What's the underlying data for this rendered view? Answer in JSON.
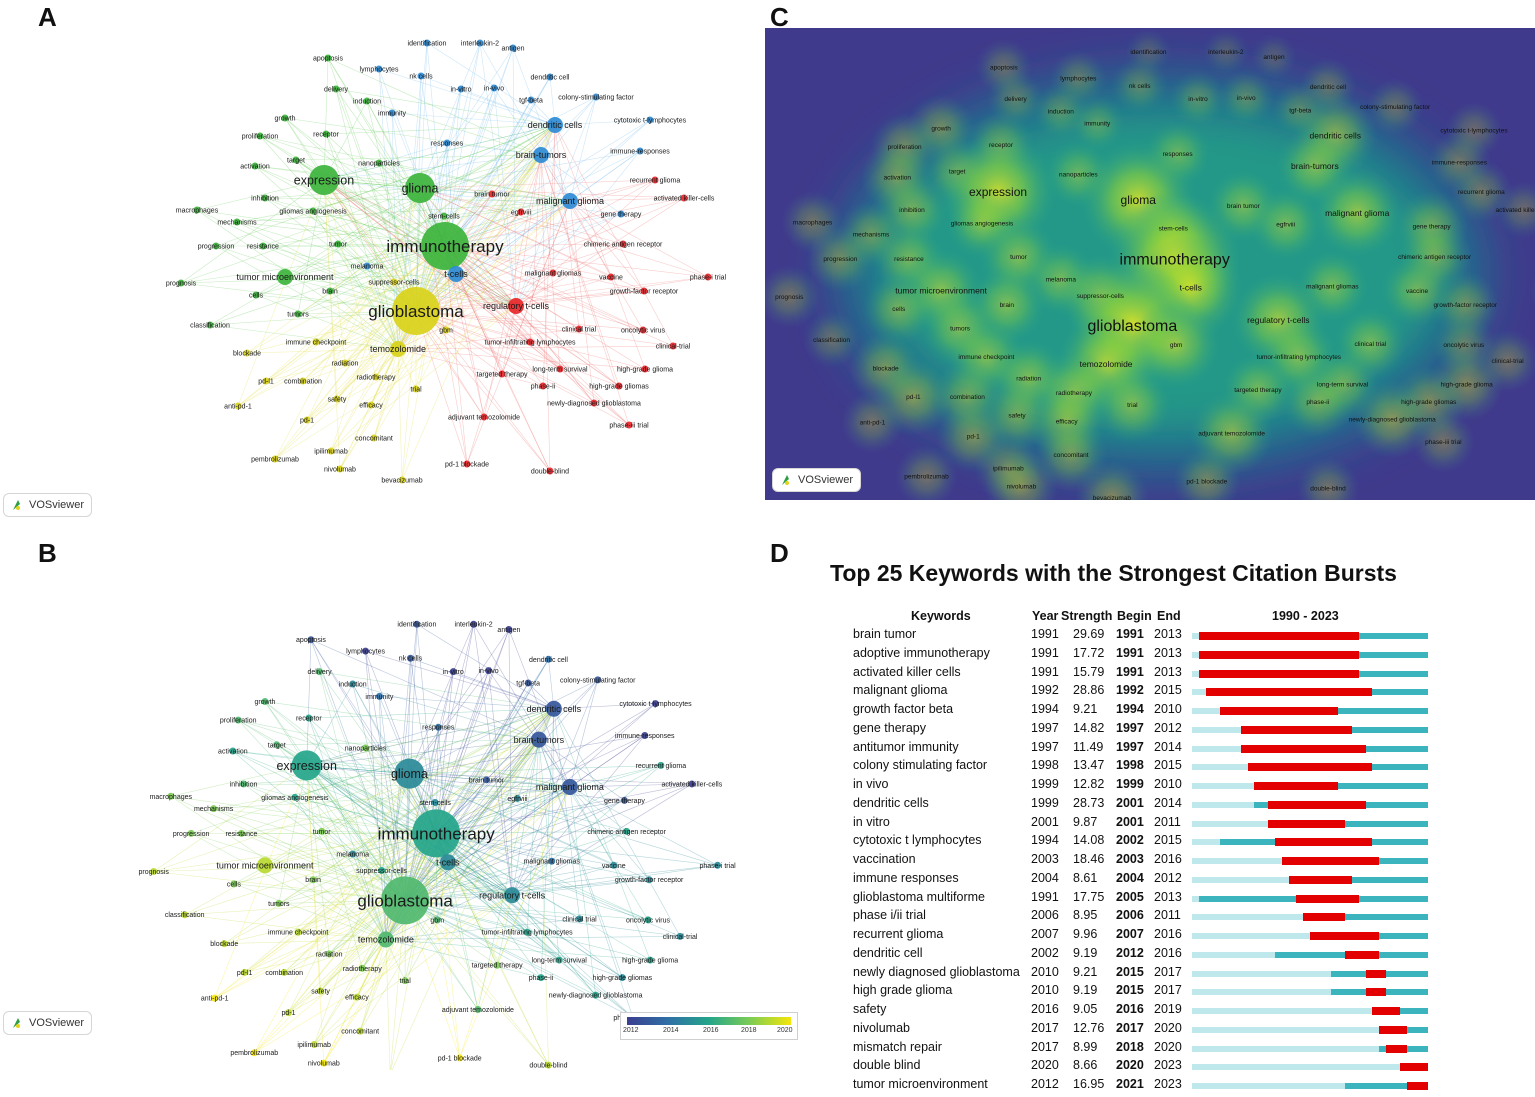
{
  "panels": {
    "a": "A",
    "b": "B",
    "c": "C",
    "d": "D"
  },
  "vosviewer_label": "VOSviewer",
  "colors": {
    "cluster_green": "#3cb43c",
    "cluster_yellow": "#d9d21a",
    "cluster_red": "#e8262a",
    "cluster_blue": "#2e8bd6",
    "burst_red": "#e30000",
    "burst_active": "#3cb4bd",
    "burst_base": "#bfe8ec",
    "density_background": "#403a8c"
  },
  "network_nodes": [
    {
      "label": "identification",
      "cluster": "blue",
      "weight": 1,
      "year": 2013,
      "density": 0.2
    },
    {
      "label": "interleukin-2",
      "cluster": "blue",
      "weight": 1,
      "year": 2012,
      "density": 0.2
    },
    {
      "label": "antigen",
      "cluster": "blue",
      "weight": 1,
      "year": 2012,
      "density": 0.2
    },
    {
      "label": "apoptosis",
      "cluster": "green",
      "weight": 1,
      "year": 2013,
      "density": 0.3
    },
    {
      "label": "lymphocytes",
      "cluster": "blue",
      "weight": 1,
      "year": 2012,
      "density": 0.3
    },
    {
      "label": "nk cells",
      "cluster": "blue",
      "weight": 1,
      "year": 2013,
      "density": 0.3
    },
    {
      "label": "dendritic cell",
      "cluster": "blue",
      "weight": 1,
      "year": 2014,
      "density": 0.3
    },
    {
      "label": "delivery",
      "cluster": "green",
      "weight": 1,
      "year": 2017,
      "density": 0.3
    },
    {
      "label": "in-vitro",
      "cluster": "blue",
      "weight": 1,
      "year": 2012,
      "density": 0.3
    },
    {
      "label": "in-vivo",
      "cluster": "blue",
      "weight": 1,
      "year": 2012,
      "density": 0.3
    },
    {
      "label": "tgf-beta",
      "cluster": "blue",
      "weight": 1,
      "year": 2013,
      "density": 0.3
    },
    {
      "label": "colony-stimulating factor",
      "cluster": "blue",
      "weight": 1,
      "year": 2013,
      "density": 0.3
    },
    {
      "label": "induction",
      "cluster": "green",
      "weight": 1,
      "year": 2015,
      "density": 0.3
    },
    {
      "label": "immunity",
      "cluster": "blue",
      "weight": 1,
      "year": 2014,
      "density": 0.3
    },
    {
      "label": "cytotoxic t-lymphocytes",
      "cluster": "blue",
      "weight": 1,
      "year": 2012,
      "density": 0.3
    },
    {
      "label": "growth",
      "cluster": "green",
      "weight": 1,
      "year": 2017,
      "density": 0.4
    },
    {
      "label": "dendritic cells",
      "cluster": "blue",
      "weight": 2,
      "year": 2013,
      "density": 0.55
    },
    {
      "label": "proliferation",
      "cluster": "green",
      "weight": 1,
      "year": 2017,
      "density": 0.4
    },
    {
      "label": "receptor",
      "cluster": "green",
      "weight": 1,
      "year": 2016,
      "density": 0.4
    },
    {
      "label": "responses",
      "cluster": "blue",
      "weight": 1,
      "year": 2014,
      "density": 0.4
    },
    {
      "label": "immune-responses",
      "cluster": "blue",
      "weight": 1,
      "year": 2012,
      "density": 0.35
    },
    {
      "label": "brain-tumors",
      "cluster": "blue",
      "weight": 2,
      "year": 2013,
      "density": 0.5
    },
    {
      "label": "target",
      "cluster": "green",
      "weight": 1,
      "year": 2017,
      "density": 0.4
    },
    {
      "label": "nanoparticles",
      "cluster": "green",
      "weight": 1,
      "year": 2018,
      "density": 0.4
    },
    {
      "label": "activation",
      "cluster": "green",
      "weight": 1,
      "year": 2016,
      "density": 0.45
    },
    {
      "label": "expression",
      "cluster": "green",
      "weight": 3,
      "year": 2016,
      "density": 0.85
    },
    {
      "label": "glioma",
      "cluster": "green",
      "weight": 3,
      "year": 2015,
      "density": 0.85
    },
    {
      "label": "recurrent glioma",
      "cluster": "red",
      "weight": 1,
      "year": 2016,
      "density": 0.35
    },
    {
      "label": "brain tumor",
      "cluster": "red",
      "weight": 1,
      "year": 2013,
      "density": 0.45
    },
    {
      "label": "malignant glioma",
      "cluster": "blue",
      "weight": 2,
      "year": 2013,
      "density": 0.6
    },
    {
      "label": "activated killer-cells",
      "cluster": "red",
      "weight": 1,
      "year": 2012,
      "density": 0.3
    },
    {
      "label": "inhibition",
      "cluster": "green",
      "weight": 1,
      "year": 2017,
      "density": 0.45
    },
    {
      "label": "macrophages",
      "cluster": "green",
      "weight": 1,
      "year": 2018,
      "density": 0.35
    },
    {
      "label": "gliomas angiogenesis",
      "cluster": "green",
      "weight": 1,
      "year": 2016,
      "density": 0.45
    },
    {
      "label": "mechanisms",
      "cluster": "green",
      "weight": 1,
      "year": 2018,
      "density": 0.4
    },
    {
      "label": "stem-cells",
      "cluster": "green",
      "weight": 1,
      "year": 2015,
      "density": 0.5
    },
    {
      "label": "egfrviii",
      "cluster": "red",
      "weight": 1,
      "year": 2015,
      "density": 0.45
    },
    {
      "label": "gene therapy",
      "cluster": "blue",
      "weight": 1,
      "year": 2013,
      "density": 0.45
    },
    {
      "label": "immunotherapy",
      "cluster": "green",
      "weight": 4,
      "year": 2016,
      "density": 1.0
    },
    {
      "label": "progression",
      "cluster": "green",
      "weight": 1,
      "year": 2018,
      "density": 0.4
    },
    {
      "label": "resistance",
      "cluster": "green",
      "weight": 1,
      "year": 2018,
      "density": 0.45
    },
    {
      "label": "tumor",
      "cluster": "green",
      "weight": 1,
      "year": 2018,
      "density": 0.5
    },
    {
      "label": "chimeric antigen receptor",
      "cluster": "red",
      "weight": 1,
      "year": 2016,
      "density": 0.45
    },
    {
      "label": "melanoma",
      "cluster": "blue",
      "weight": 1,
      "year": 2015,
      "density": 0.45
    },
    {
      "label": "t-cells",
      "cluster": "blue",
      "weight": 2,
      "year": 2015,
      "density": 0.75
    },
    {
      "label": "tumor microenvironment",
      "cluster": "green",
      "weight": 2,
      "year": 2019,
      "density": 0.55
    },
    {
      "label": "suppressor-cells",
      "cluster": "yellow",
      "weight": 1,
      "year": 2016,
      "density": 0.55
    },
    {
      "label": "malignant gliomas",
      "cluster": "red",
      "weight": 1,
      "year": 2014,
      "density": 0.45
    },
    {
      "label": "vaccine",
      "cluster": "red",
      "weight": 1,
      "year": 2015,
      "density": 0.45
    },
    {
      "label": "phase-i trial",
      "cluster": "red",
      "weight": 1,
      "year": 2015,
      "density": 0.3
    },
    {
      "label": "prognosis",
      "cluster": "green",
      "weight": 1,
      "year": 2019,
      "density": 0.35
    },
    {
      "label": "brain",
      "cluster": "green",
      "weight": 1,
      "year": 2018,
      "density": 0.5
    },
    {
      "label": "cells",
      "cluster": "green",
      "weight": 1,
      "year": 2018,
      "density": 0.45
    },
    {
      "label": "growth-factor receptor",
      "cluster": "red",
      "weight": 1,
      "year": 2015,
      "density": 0.4
    },
    {
      "label": "regulatory t-cells",
      "cluster": "red",
      "weight": 2,
      "year": 2015,
      "density": 0.65
    },
    {
      "label": "tumors",
      "cluster": "green",
      "weight": 1,
      "year": 2018,
      "density": 0.5
    },
    {
      "label": "glioblastoma",
      "cluster": "yellow",
      "weight": 4,
      "year": 2017,
      "density": 0.95
    },
    {
      "label": "classification",
      "cluster": "green",
      "weight": 1,
      "year": 2019,
      "density": 0.3
    },
    {
      "label": "gbm",
      "cluster": "yellow",
      "weight": 1,
      "year": 2017,
      "density": 0.6
    },
    {
      "label": "clinical trial",
      "cluster": "red",
      "weight": 1,
      "year": 2015,
      "density": 0.45
    },
    {
      "label": "oncolytic virus",
      "cluster": "red",
      "weight": 1,
      "year": 2016,
      "density": 0.35
    },
    {
      "label": "immune checkpoint",
      "cluster": "yellow",
      "weight": 1,
      "year": 2019,
      "density": 0.5
    },
    {
      "label": "tumor-infiltrating lymphocytes",
      "cluster": "red",
      "weight": 1,
      "year": 2016,
      "density": 0.5
    },
    {
      "label": "clinical-trial",
      "cluster": "red",
      "weight": 1,
      "year": 2015,
      "density": 0.35
    },
    {
      "label": "blockade",
      "cluster": "yellow",
      "weight": 1,
      "year": 2019,
      "density": 0.45
    },
    {
      "label": "temozolomide",
      "cluster": "yellow",
      "weight": 2,
      "year": 2017,
      "density": 0.7
    },
    {
      "label": "radiation",
      "cluster": "yellow",
      "weight": 1,
      "year": 2018,
      "density": 0.5
    },
    {
      "label": "targeted therapy",
      "cluster": "red",
      "weight": 1,
      "year": 2018,
      "density": 0.45
    },
    {
      "label": "long-term survival",
      "cluster": "red",
      "weight": 1,
      "year": 2016,
      "density": 0.45
    },
    {
      "label": "high-grade glioma",
      "cluster": "red",
      "weight": 1,
      "year": 2016,
      "density": 0.45
    },
    {
      "label": "pd-l1",
      "cluster": "yellow",
      "weight": 1,
      "year": 2019,
      "density": 0.5
    },
    {
      "label": "combination",
      "cluster": "yellow",
      "weight": 1,
      "year": 2019,
      "density": 0.45
    },
    {
      "label": "radiotherapy",
      "cluster": "yellow",
      "weight": 1,
      "year": 2018,
      "density": 0.55
    },
    {
      "label": "phase-ii",
      "cluster": "red",
      "weight": 1,
      "year": 2016,
      "density": 0.45
    },
    {
      "label": "trial",
      "cluster": "yellow",
      "weight": 1,
      "year": 2018,
      "density": 0.5
    },
    {
      "label": "high-grade gliomas",
      "cluster": "red",
      "weight": 1,
      "year": 2015,
      "density": 0.45
    },
    {
      "label": "safety",
      "cluster": "yellow",
      "weight": 1,
      "year": 2019,
      "density": 0.45
    },
    {
      "label": "anti-pd-1",
      "cluster": "yellow",
      "weight": 1,
      "year": 2020,
      "density": 0.35
    },
    {
      "label": "efficacy",
      "cluster": "yellow",
      "weight": 1,
      "year": 2019,
      "density": 0.5
    },
    {
      "label": "newly-diagnosed glioblastoma",
      "cluster": "red",
      "weight": 1,
      "year": 2016,
      "density": 0.5
    },
    {
      "label": "pd-1",
      "cluster": "yellow",
      "weight": 1,
      "year": 2019,
      "density": 0.45
    },
    {
      "label": "adjuvant temozolomide",
      "cluster": "red",
      "weight": 1,
      "year": 2017,
      "density": 0.55
    },
    {
      "label": "phase-iii trial",
      "cluster": "red",
      "weight": 1,
      "year": 2015,
      "density": 0.35
    },
    {
      "label": "concomitant",
      "cluster": "yellow",
      "weight": 1,
      "year": 2019,
      "density": 0.45
    },
    {
      "label": "ipilimumab",
      "cluster": "yellow",
      "weight": 1,
      "year": 2019,
      "density": 0.4
    },
    {
      "label": "pembrolizumab",
      "cluster": "yellow",
      "weight": 1,
      "year": 2020,
      "density": 0.35
    },
    {
      "label": "nivolumab",
      "cluster": "yellow",
      "weight": 1,
      "year": 2020,
      "density": 0.45
    },
    {
      "label": "pd-1 blockade",
      "cluster": "red",
      "weight": 1,
      "year": 2020,
      "density": 0.4
    },
    {
      "label": "bevacizumab",
      "cluster": "yellow",
      "weight": 1,
      "year": 2019,
      "density": 0.45
    },
    {
      "label": "double-blind",
      "cluster": "red",
      "weight": 1,
      "year": 2019,
      "density": 0.35
    }
  ],
  "colorbar": {
    "ticks": [
      "2012",
      "2014",
      "2016",
      "2018",
      "2020"
    ]
  },
  "burst": {
    "title": "Top 25 Keywords with the Strongest Citation Bursts",
    "headers": {
      "keywords": "Keywords",
      "year": "Year",
      "strength": "Strength",
      "begin": "Begin",
      "end": "End",
      "range": "1990 - 2023"
    },
    "range_start": 1990,
    "range_end": 2023,
    "rows": [
      {
        "keyword": "brain tumor",
        "year": "1991",
        "strength": "29.69",
        "begin": "1991",
        "end": "2013"
      },
      {
        "keyword": "adoptive immunotherapy",
        "year": "1991",
        "strength": "17.72",
        "begin": "1991",
        "end": "2013"
      },
      {
        "keyword": "activated killer cells",
        "year": "1991",
        "strength": "15.79",
        "begin": "1991",
        "end": "2013"
      },
      {
        "keyword": "malignant glioma",
        "year": "1992",
        "strength": "28.86",
        "begin": "1992",
        "end": "2015"
      },
      {
        "keyword": "growth factor beta",
        "year": "1994",
        "strength": "9.21",
        "begin": "1994",
        "end": "2010"
      },
      {
        "keyword": "gene therapy",
        "year": "1997",
        "strength": "14.82",
        "begin": "1997",
        "end": "2012"
      },
      {
        "keyword": "antitumor immunity",
        "year": "1997",
        "strength": "11.49",
        "begin": "1997",
        "end": "2014"
      },
      {
        "keyword": "colony stimulating factor",
        "year": "1998",
        "strength": "13.47",
        "begin": "1998",
        "end": "2015"
      },
      {
        "keyword": "in vivo",
        "year": "1999",
        "strength": "12.82",
        "begin": "1999",
        "end": "2010"
      },
      {
        "keyword": "dendritic cells",
        "year": "1999",
        "strength": "28.73",
        "begin": "2001",
        "end": "2014"
      },
      {
        "keyword": "in vitro",
        "year": "2001",
        "strength": "9.87",
        "begin": "2001",
        "end": "2011"
      },
      {
        "keyword": "cytotoxic t lymphocytes",
        "year": "1994",
        "strength": "14.08",
        "begin": "2002",
        "end": "2015"
      },
      {
        "keyword": "vaccination",
        "year": "2003",
        "strength": "18.46",
        "begin": "2003",
        "end": "2016"
      },
      {
        "keyword": "immune responses",
        "year": "2004",
        "strength": "8.61",
        "begin": "2004",
        "end": "2012"
      },
      {
        "keyword": "glioblastoma multiforme",
        "year": "1991",
        "strength": "17.75",
        "begin": "2005",
        "end": "2013"
      },
      {
        "keyword": "phase i/ii trial",
        "year": "2006",
        "strength": "8.95",
        "begin": "2006",
        "end": "2011"
      },
      {
        "keyword": "recurrent glioma",
        "year": "2007",
        "strength": "9.96",
        "begin": "2007",
        "end": "2016"
      },
      {
        "keyword": "dendritic cell",
        "year": "2002",
        "strength": "9.19",
        "begin": "2012",
        "end": "2016"
      },
      {
        "keyword": "newly diagnosed glioblastoma",
        "year": "2010",
        "strength": "9.21",
        "begin": "2015",
        "end": "2017"
      },
      {
        "keyword": "high grade glioma",
        "year": "2010",
        "strength": "9.19",
        "begin": "2015",
        "end": "2017"
      },
      {
        "keyword": "safety",
        "year": "2016",
        "strength": "9.05",
        "begin": "2016",
        "end": "2019"
      },
      {
        "keyword": "nivolumab",
        "year": "2017",
        "strength": "12.76",
        "begin": "2017",
        "end": "2020"
      },
      {
        "keyword": "mismatch repair",
        "year": "2017",
        "strength": "8.99",
        "begin": "2018",
        "end": "2020"
      },
      {
        "keyword": "double blind",
        "year": "2020",
        "strength": "8.66",
        "begin": "2020",
        "end": "2023"
      },
      {
        "keyword": "tumor microenvironment",
        "year": "2012",
        "strength": "16.95",
        "begin": "2021",
        "end": "2023"
      }
    ]
  }
}
